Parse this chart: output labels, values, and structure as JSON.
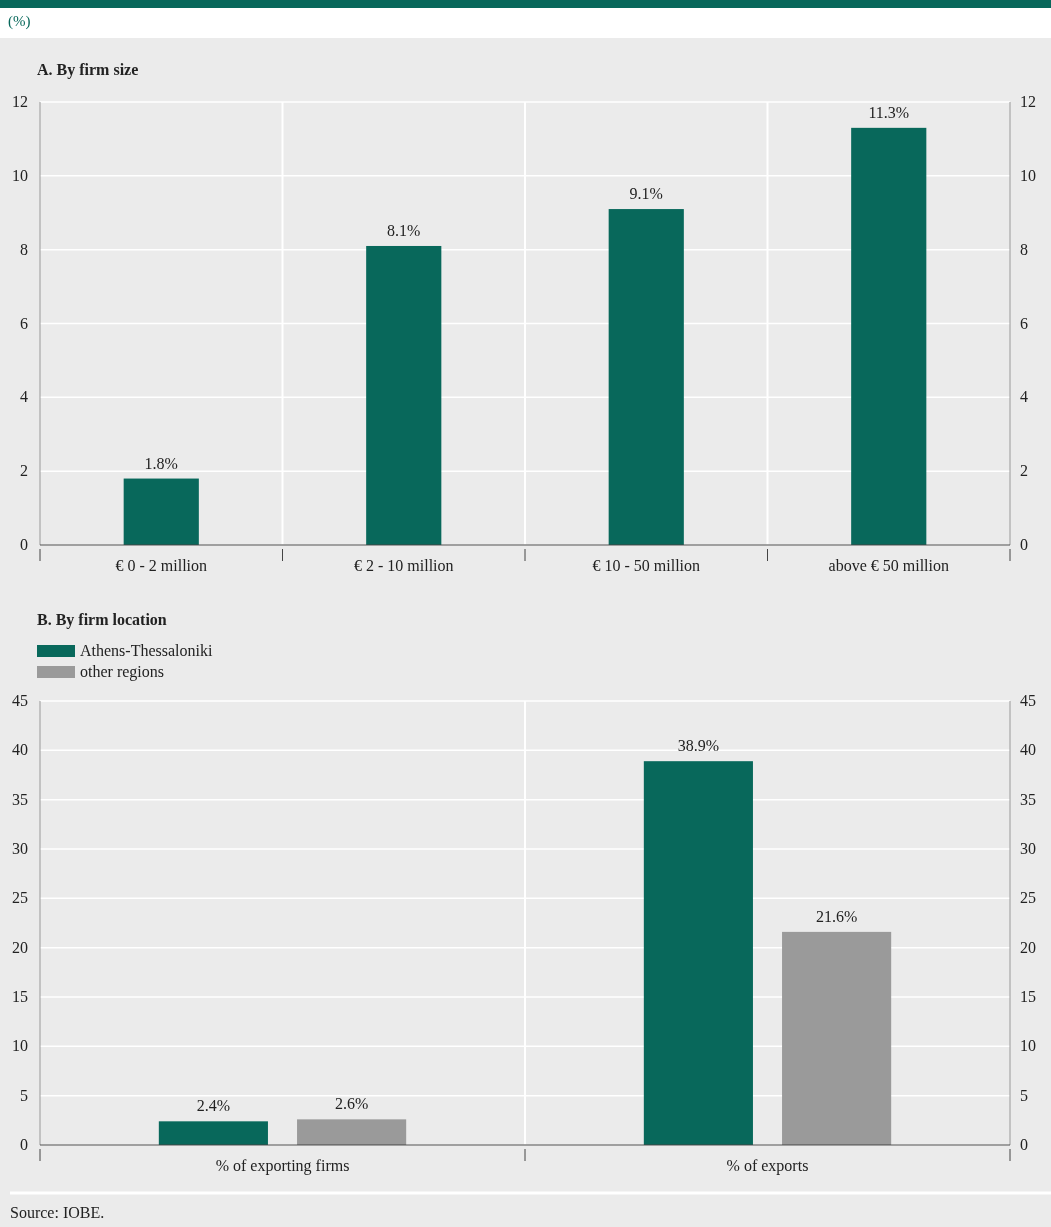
{
  "chart_data": [
    {
      "type": "bar",
      "title": "A. By firm size",
      "subtitle": "(%)",
      "categories": [
        "€ 0 - 2 million",
        "€ 2 - 10 million",
        "€ 10 - 50 million",
        "above € 50 million"
      ],
      "series": [
        {
          "color": "#08685b",
          "values": [
            1.8,
            8.1,
            9.1,
            11.3
          ],
          "value_labels": [
            "1.8%",
            "8.1%",
            "9.1%",
            "11.3%"
          ]
        }
      ],
      "ylim": [
        0,
        12
      ],
      "yticks": [
        0,
        2,
        4,
        6,
        8,
        10,
        12
      ],
      "y2lim": [
        0,
        12
      ],
      "y2ticks": [
        0,
        2,
        4,
        6,
        8,
        10,
        12
      ],
      "grid": "y",
      "legend": false
    },
    {
      "type": "bar",
      "title": "B. By firm location",
      "categories": [
        "% of exporting firms",
        "% of exports"
      ],
      "series": [
        {
          "name": "Athens-Thessaloniki",
          "color": "#08685b",
          "values": [
            2.4,
            38.9
          ],
          "value_labels": [
            "2.4%",
            "38.9%"
          ]
        },
        {
          "name": "other regions",
          "color": "#9a9a9a",
          "values": [
            2.6,
            21.6
          ],
          "value_labels": [
            "2.6%",
            "21.6%"
          ]
        }
      ],
      "ylim": [
        0,
        45
      ],
      "yticks": [
        0,
        5,
        10,
        15,
        20,
        25,
        30,
        35,
        40,
        45
      ],
      "y2lim": [
        0,
        45
      ],
      "y2ticks": [
        0,
        5,
        10,
        15,
        20,
        25,
        30,
        35,
        40,
        45
      ],
      "grid": "y",
      "legend": "top left",
      "annotations": [
        "Source: IOBE."
      ]
    }
  ]
}
